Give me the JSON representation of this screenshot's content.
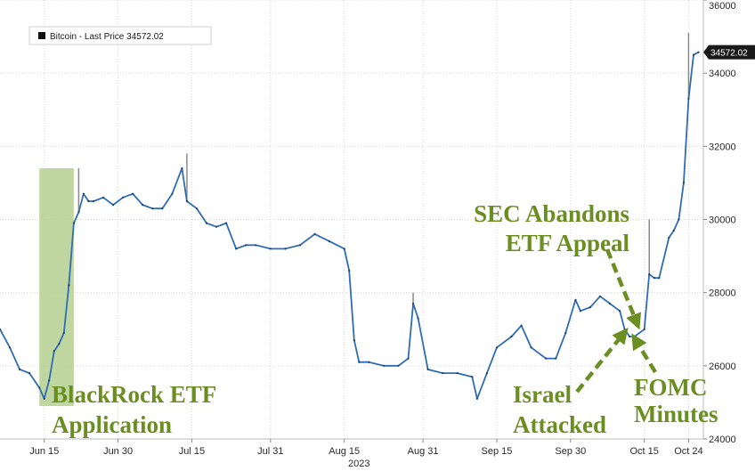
{
  "chart_data": {
    "type": "line",
    "title": "",
    "xlabel": "",
    "ylabel": "",
    "x_range": [
      "2023-06-06",
      "2023-10-27"
    ],
    "ylim": [
      24000,
      36000
    ],
    "y_ticks": [
      24000,
      26000,
      28000,
      30000,
      32000,
      34000,
      36000
    ],
    "y_tick_labels": [
      "24000",
      "26000",
      "28000",
      "30000",
      "32000",
      "34000",
      "36000"
    ],
    "x_ticks": [
      {
        "date": "2023-06-15",
        "label": "Jun 15"
      },
      {
        "date": "2023-06-30",
        "label": "Jun 30"
      },
      {
        "date": "2023-07-15",
        "label": "Jul 15"
      },
      {
        "date": "2023-07-31",
        "label": "Jul 31"
      },
      {
        "date": "2023-08-15",
        "label": "Aug 15"
      },
      {
        "date": "2023-08-31",
        "label": "Aug 31"
      },
      {
        "date": "2023-09-15",
        "label": "Sep 15"
      },
      {
        "date": "2023-09-30",
        "label": "Sep 30"
      },
      {
        "date": "2023-10-15",
        "label": "Oct 15"
      },
      {
        "date": "2023-10-24",
        "label": "Oct 24"
      }
    ],
    "year_label": "2023",
    "grid": true,
    "legend_position": "top-left",
    "line_color": "#2f6db3",
    "series": [
      {
        "name": "Bitcoin - Last Price 34572.02",
        "x": [
          "2023-06-06",
          "2023-06-08",
          "2023-06-10",
          "2023-06-12",
          "2023-06-14",
          "2023-06-15",
          "2023-06-16",
          "2023-06-17",
          "2023-06-18",
          "2023-06-19",
          "2023-06-20",
          "2023-06-21",
          "2023-06-22",
          "2023-06-23",
          "2023-06-24",
          "2023-06-25",
          "2023-06-27",
          "2023-06-29",
          "2023-07-01",
          "2023-07-03",
          "2023-07-05",
          "2023-07-07",
          "2023-07-09",
          "2023-07-11",
          "2023-07-13",
          "2023-07-14",
          "2023-07-16",
          "2023-07-18",
          "2023-07-20",
          "2023-07-22",
          "2023-07-24",
          "2023-07-26",
          "2023-07-28",
          "2023-07-31",
          "2023-08-03",
          "2023-08-06",
          "2023-08-09",
          "2023-08-12",
          "2023-08-15",
          "2023-08-16",
          "2023-08-17",
          "2023-08-18",
          "2023-08-20",
          "2023-08-23",
          "2023-08-26",
          "2023-08-28",
          "2023-08-29",
          "2023-08-30",
          "2023-09-01",
          "2023-09-04",
          "2023-09-07",
          "2023-09-10",
          "2023-09-11",
          "2023-09-13",
          "2023-09-15",
          "2023-09-18",
          "2023-09-20",
          "2023-09-22",
          "2023-09-25",
          "2023-09-27",
          "2023-09-29",
          "2023-10-01",
          "2023-10-02",
          "2023-10-04",
          "2023-10-06",
          "2023-10-08",
          "2023-10-10",
          "2023-10-11",
          "2023-10-12",
          "2023-10-13",
          "2023-10-15",
          "2023-10-16",
          "2023-10-17",
          "2023-10-18",
          "2023-10-20",
          "2023-10-21",
          "2023-10-22",
          "2023-10-23",
          "2023-10-24",
          "2023-10-25",
          "2023-10-26"
        ],
        "values": [
          27000,
          26500,
          25900,
          25800,
          25400,
          25100,
          25600,
          26400,
          26600,
          26900,
          28200,
          29900,
          30200,
          30700,
          30500,
          30500,
          30600,
          30400,
          30600,
          30700,
          30400,
          30300,
          30300,
          30700,
          31400,
          30500,
          30300,
          29900,
          29800,
          29900,
          29200,
          29300,
          29300,
          29200,
          29200,
          29300,
          29600,
          29400,
          29200,
          28600,
          26700,
          26100,
          26100,
          26000,
          26000,
          26200,
          27700,
          27300,
          25900,
          25800,
          25800,
          25700,
          25100,
          25800,
          26500,
          26800,
          27100,
          26500,
          26200,
          26200,
          26900,
          27800,
          27500,
          27600,
          27900,
          27700,
          27500,
          27000,
          26800,
          26800,
          27000,
          28500,
          28400,
          28400,
          29500,
          29700,
          30000,
          31000,
          33300,
          34500,
          34572.02
        ]
      }
    ],
    "highlight_region": {
      "start": "2023-06-14",
      "end": "2023-06-21",
      "color": "#b5cf8f"
    },
    "spike_annotations": [
      {
        "date": "2023-06-22",
        "high": 31400
      },
      {
        "date": "2023-07-14",
        "high": 31800
      },
      {
        "date": "2023-08-29",
        "high": 28000
      },
      {
        "date": "2023-10-16",
        "high": 30000
      },
      {
        "date": "2023-10-24",
        "high": 35100
      }
    ],
    "last_price_label": "34572.02",
    "annotations": [
      {
        "id": "blackrock",
        "lines": [
          "BlackRock ETF",
          "Application"
        ]
      },
      {
        "id": "sec",
        "lines": [
          "SEC Abandons",
          "ETF Appeal"
        ]
      },
      {
        "id": "israel",
        "lines": [
          "Israel",
          "Attacked"
        ]
      },
      {
        "id": "fomc",
        "lines": [
          "FOMC",
          "Minutes"
        ]
      }
    ]
  }
}
